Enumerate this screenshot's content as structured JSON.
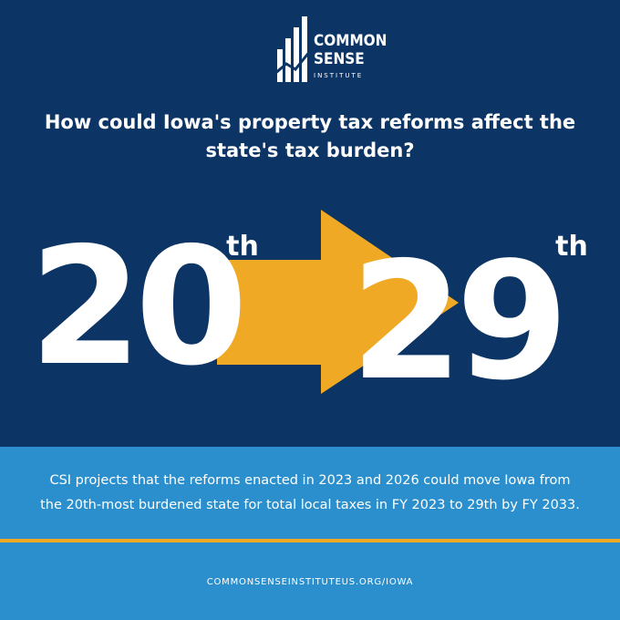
{
  "logo": {
    "line1": "COMMON",
    "line2": "SENSE",
    "line3": "INSTITUTE"
  },
  "headline": [
    "How could Iowa's property tax reforms affect the",
    "state's tax burden?"
  ],
  "rank_from": {
    "number": "20",
    "suffix": "th"
  },
  "rank_to": {
    "number": "29",
    "suffix": "th"
  },
  "description": [
    "CSI projects that the reforms enacted in 2023 and 2026 could move Iowa from",
    "the 20th-most burdened state for total local taxes in FY 2023 to 29th by FY 2033."
  ],
  "url": "COMMONSENSEINSTITUTEUS.ORG/IOWA"
}
